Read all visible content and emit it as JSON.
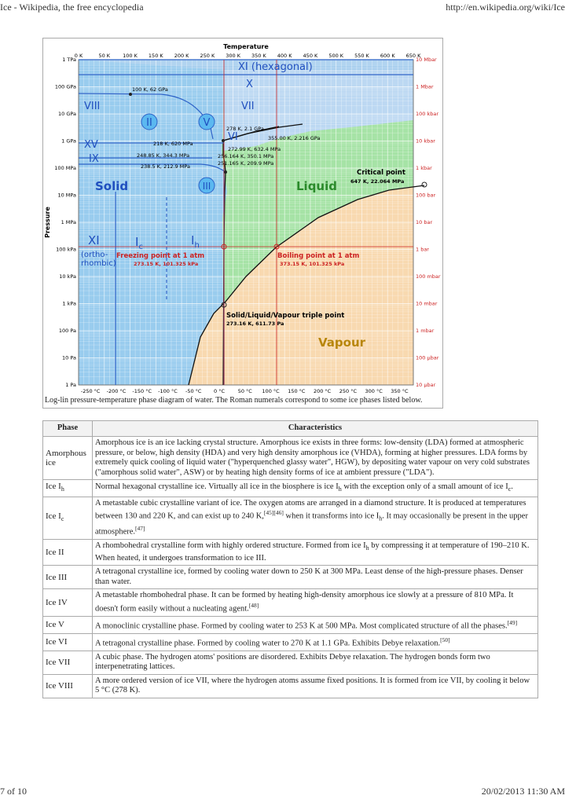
{
  "browser": {
    "title": "Ice - Wikipedia, the free encyclopedia",
    "url": "http://en.wikipedia.org/wiki/Ice",
    "page": "7 of 10",
    "datetime": "20/02/2013 11:30 AM"
  },
  "diagram": {
    "top_axis_title": "Temperature",
    "top_ticks": [
      "0 K",
      "50 K",
      "100 K",
      "150 K",
      "200 K",
      "250 K",
      "300 K",
      "350 K",
      "400 K",
      "450 K",
      "500 K",
      "550 K",
      "600 K",
      "650 K"
    ],
    "bottom_ticks": [
      "-250 °C",
      "-200 °C",
      "-150 °C",
      "-100 °C",
      "-50 °C",
      "0 °C",
      "50 °C",
      "100 °C",
      "150 °C",
      "200 °C",
      "250 °C",
      "300 °C",
      "350 °C"
    ],
    "left_axis_title": "Pressure",
    "left_ticks": [
      "1 TPa",
      "100 GPa",
      "10 GPa",
      "1 GPa",
      "100 MPa",
      "10 MPa",
      "1 MPa",
      "100 kPa",
      "10 kPa",
      "1 kPa",
      "100 Pa",
      "10 Pa",
      "1 Pa"
    ],
    "right_ticks": [
      "10 Mbar",
      "1 Mbar",
      "100 kbar",
      "10 kbar",
      "1 kbar",
      "100 bar",
      "10 bar",
      "1 bar",
      "100 mbar",
      "10 mbar",
      "1 mbar",
      "100 µbar",
      "10 µbar"
    ],
    "phase_labels": {
      "solid": "Solid",
      "liquid": "Liquid",
      "vapour": "Vapour",
      "xi_hex": "XI (hexagonal)",
      "x": "X",
      "viii": "VIII",
      "vii": "VII",
      "ii": "II",
      "v": "V",
      "vi": "VI",
      "xv": "XV",
      "ix": "IX",
      "iii": "III",
      "xi": "XI",
      "xi_sub": "(ortho-\nrhombic)",
      "ic": "I",
      "ic_sub": "c",
      "ih": "I",
      "ih_sub": "h"
    },
    "annotations": {
      "p100k": "100 K, 62 GPa",
      "p278": "278 K, 2.1 GPa",
      "p355": "355.00 K, 2.216 GPa",
      "p218": "218 K, 620 MPa",
      "p272": "272.99 K, 632.4 MPa",
      "p248": "248.85 K, 344.3 MPa",
      "p256": "256.164 K, 350.1 MPa",
      "p238": "238.5 K, 212.9 MPa",
      "p251": "251.165 K, 209.9 MPa",
      "critical": "Critical point",
      "critical_val": "647 K, 22.064 MPa",
      "freezing": "Freezing point at 1 atm",
      "freezing_val": "273.15 K, 101.325 kPa",
      "boiling": "Boiling point at 1 atm",
      "boiling_val": "373.15 K, 101.325 kPa",
      "triple": "Solid/Liquid/Vapour triple point",
      "triple_val": "273.16 K, 611.73 Pa"
    },
    "caption": "Log-lin pressure-temperature phase diagram of water. The Roman numerals correspond to some ice phases listed below.",
    "colors": {
      "solid": "#99ccee",
      "liquid": "#a6e3a6",
      "vapour": "#f8d9b0",
      "red": "#cc2222",
      "blue": "#1f4fbf"
    }
  },
  "table": {
    "headers": [
      "Phase",
      "Characteristics"
    ],
    "rows": [
      {
        "phase": "Amorphous ice",
        "text": "Amorphous ice is an ice lacking crystal structure. Amorphous ice exists in three forms: low-density (LDA) formed at atmospheric pressure, or below, high density (HDA) and very high density amorphous ice (VHDA), forming at higher pressures. LDA forms by extremely quick cooling of liquid water (\"hyperquenched glassy water\", HGW), by depositing water vapour on very cold substrates (\"amorphous solid water\", ASW) or by heating high density forms of ice at ambient pressure (\"LDA\")."
      },
      {
        "phase": "Ice I",
        "phase_sub": "h",
        "text_a": "Normal hexagonal crystalline ice. Virtually all ice in the biosphere is ice I",
        "sub_a": "h",
        "text_b": " with the exception only of a small amount of ice I",
        "sub_b": "c",
        "text_c": "."
      },
      {
        "phase": "Ice I",
        "phase_sub": "c",
        "text_a": "A metastable cubic crystalline variant of ice. The oxygen atoms are arranged in a diamond structure. It is produced at temperatures between 130 and 220 K, and can exist up to 240 K,",
        "sup_a": "[45][46]",
        "text_b": " when it transforms into ice I",
        "sub_b": "h",
        "text_c": ". It may occasionally be present in the upper atmosphere.",
        "sup_c": "[47]"
      },
      {
        "phase": "Ice II",
        "text_a": "A rhombohedral crystalline form with highly ordered structure. Formed from ice I",
        "sub_a": "h",
        "text_b": " by compressing it at temperature of 190–210 K. When heated, it undergoes transformation to ice III."
      },
      {
        "phase": "Ice III",
        "text": "A tetragonal crystalline ice, formed by cooling water down to 250 K at 300 MPa. Least dense of the high-pressure phases. Denser than water."
      },
      {
        "phase": "Ice IV",
        "text_a": "A metastable rhombohedral phase. It can be formed by heating high-density amorphous ice slowly at a pressure of 810 MPa. It doesn't form easily without a nucleating agent.",
        "sup_a": "[48]"
      },
      {
        "phase": "Ice V",
        "text_a": "A monoclinic crystalline phase. Formed by cooling water to 253 K at 500 MPa. Most complicated structure of all the phases.",
        "sup_a": "[49]"
      },
      {
        "phase": "Ice VI",
        "text_a": "A tetragonal crystalline phase. Formed by cooling water to 270 K at 1.1 GPa. Exhibits Debye relaxation.",
        "sup_a": "[50]"
      },
      {
        "phase": "Ice VII",
        "text": "A cubic phase. The hydrogen atoms' positions are disordered. Exhibits Debye relaxation. The hydrogen bonds form two interpenetrating lattices."
      },
      {
        "phase": "Ice VIII",
        "text": "A more ordered version of ice VII, where the hydrogen atoms assume fixed positions. It is formed from ice VII, by cooling it below 5 °C (278 K)."
      }
    ]
  }
}
